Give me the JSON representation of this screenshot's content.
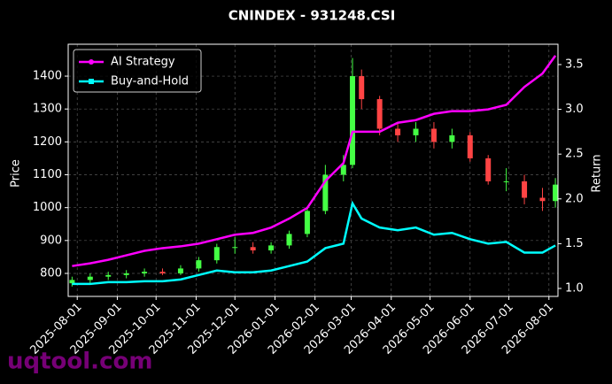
{
  "chart_data": {
    "type": "candlestick",
    "title": "CNINDEX - 931248.CSI",
    "ylabel": "Price",
    "y2label": "Return",
    "watermark": "uqtool.com",
    "x": [
      "2025-07-28",
      "2025-08-11",
      "2025-08-25",
      "2025-09-08",
      "2025-09-22",
      "2025-10-06",
      "2025-10-20",
      "2025-11-03",
      "2025-11-17",
      "2025-12-01",
      "2025-12-15",
      "2025-12-29",
      "2026-01-12",
      "2026-01-26",
      "2026-02-09",
      "2026-02-23",
      "2026-03-02",
      "2026-03-09",
      "2026-03-23",
      "2026-04-06",
      "2026-04-20",
      "2026-05-04",
      "2026-05-18",
      "2026-06-01",
      "2026-06-15",
      "2026-06-29",
      "2026-07-13",
      "2026-07-27",
      "2026-08-06"
    ],
    "open": [
      770,
      780,
      790,
      795,
      800,
      805,
      800,
      815,
      840,
      880,
      880,
      870,
      885,
      920,
      990,
      1100,
      1130,
      1400,
      1330,
      1240,
      1220,
      1240,
      1200,
      1220,
      1150,
      1080,
      1080,
      1030,
      1020
    ],
    "high": [
      790,
      800,
      805,
      810,
      815,
      815,
      825,
      850,
      890,
      910,
      895,
      895,
      930,
      1000,
      1130,
      1160,
      1455,
      1420,
      1340,
      1260,
      1260,
      1260,
      1240,
      1230,
      1160,
      1120,
      1100,
      1060,
      1090
    ],
    "low": [
      760,
      770,
      780,
      785,
      790,
      795,
      795,
      805,
      830,
      860,
      860,
      860,
      875,
      910,
      980,
      1080,
      1120,
      1300,
      1220,
      1200,
      1200,
      1180,
      1180,
      1140,
      1070,
      1050,
      1010,
      990,
      1000
    ],
    "close": [
      780,
      790,
      795,
      800,
      805,
      800,
      815,
      840,
      880,
      880,
      870,
      885,
      920,
      990,
      1100,
      1130,
      1400,
      1330,
      1240,
      1220,
      1240,
      1200,
      1220,
      1150,
      1080,
      1080,
      1030,
      1020,
      1070
    ],
    "up_color": "#44ff44",
    "down_color": "#ff4444",
    "series": [
      {
        "name": "AI Strategy",
        "type": "line",
        "axis": "y2",
        "color": "#ff00ff",
        "marker": "circle",
        "values": [
          1.25,
          1.28,
          1.32,
          1.37,
          1.42,
          1.45,
          1.47,
          1.5,
          1.55,
          1.6,
          1.62,
          1.68,
          1.78,
          1.9,
          2.2,
          2.4,
          2.75,
          2.75,
          2.75,
          2.85,
          2.88,
          2.95,
          2.98,
          2.98,
          3.0,
          3.05,
          3.25,
          3.4,
          3.6
        ]
      },
      {
        "name": "Buy-and-Hold",
        "type": "line",
        "axis": "y2",
        "color": "#00ffff",
        "marker": "square",
        "values": [
          1.05,
          1.05,
          1.07,
          1.07,
          1.08,
          1.08,
          1.1,
          1.15,
          1.2,
          1.18,
          1.18,
          1.2,
          1.25,
          1.3,
          1.45,
          1.5,
          1.95,
          1.78,
          1.68,
          1.65,
          1.68,
          1.6,
          1.62,
          1.55,
          1.5,
          1.52,
          1.4,
          1.4,
          1.48
        ]
      }
    ],
    "xlim": [
      "2025-07-25",
      "2026-08-08"
    ],
    "xticks": [
      "2025-08-01",
      "2025-09-01",
      "2025-10-01",
      "2025-11-01",
      "2025-12-01",
      "2026-01-01",
      "2026-02-01",
      "2026-03-01",
      "2026-04-01",
      "2026-05-01",
      "2026-06-01",
      "2026-07-01",
      "2026-08-01"
    ],
    "ylim": [
      730,
      1497
    ],
    "yticks": [
      800,
      900,
      1000,
      1100,
      1200,
      1300,
      1400
    ],
    "y2lim": [
      0.911,
      3.727
    ],
    "y2ticks": [
      {
        "value": 1,
        "label": "1.0"
      },
      {
        "value": 1.5,
        "label": "1.5"
      },
      {
        "value": 2,
        "label": "2.0"
      },
      {
        "value": 2.5,
        "label": "2.5"
      },
      {
        "value": 3,
        "label": "3.0"
      },
      {
        "value": 3.5,
        "label": "3.5"
      }
    ],
    "grid": true,
    "legend": "upper-left"
  }
}
